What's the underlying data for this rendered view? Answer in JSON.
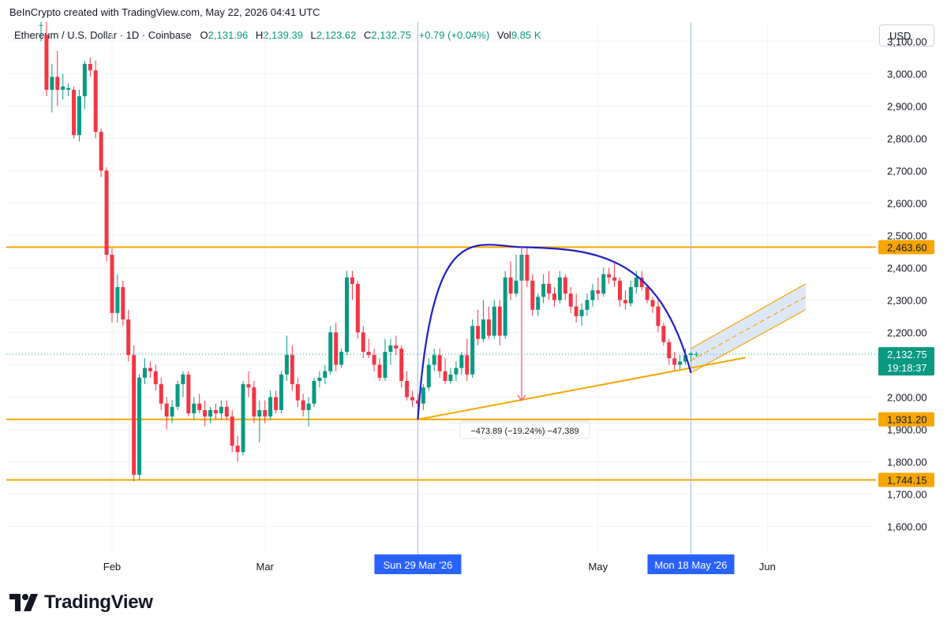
{
  "credit": "BeInCrypto created with TradingView.com, May 22, 2026 04:41 UTC",
  "legend": {
    "symbol": "Ethereum / U.S. Dollar · 1D · Coinbase",
    "o_label": "O",
    "o": "2,131.96",
    "h_label": "H",
    "h": "2,139.39",
    "l_label": "L",
    "l": "2,123.62",
    "c_label": "C",
    "c": "2,132.75",
    "change": "+0.79 (+0.04%)",
    "vol_label": "Vol",
    "vol": "9.85 K"
  },
  "currency": "USD",
  "brand": "TradingView",
  "colors": {
    "up": "#089981",
    "down": "#f23645",
    "level": "#f7a600",
    "arc": "#1e1ec8",
    "crosshair": "#2962ff"
  },
  "chart_data": {
    "type": "candlestick",
    "y_axis": {
      "range": [
        1550,
        3150
      ],
      "ticks": [
        1600,
        1700,
        1800,
        1900,
        2000,
        2100,
        2200,
        2300,
        2400,
        2500,
        2600,
        2700,
        2800,
        2900,
        3000,
        3100
      ],
      "tick_labels": [
        "1,600.00",
        "1,700.00",
        "1,800.00",
        "1,900.00",
        "2,000.00",
        "2,100.00",
        "2,200.00",
        "2,300.00",
        "2,400.00",
        "2,500.00",
        "2,600.00",
        "2,700.00",
        "2,800.00",
        "2,900.00",
        "3,000.00",
        "3,100.00"
      ]
    },
    "x_axis": {
      "range": [
        "2026-01-15",
        "2026-06-15"
      ],
      "ticks": [
        {
          "date": "2026-02-01",
          "label": "Feb"
        },
        {
          "date": "2026-03-01",
          "label": "Mar"
        },
        {
          "date": "2026-05-01",
          "label": "May"
        },
        {
          "date": "2026-06-01",
          "label": "Jun"
        }
      ]
    },
    "grid": true,
    "horizontal_levels": [
      {
        "price": 2463.6,
        "label": "2,463.60"
      },
      {
        "price": 1931.2,
        "label": "1,931.20"
      },
      {
        "price": 1744.15,
        "label": "1,744.15"
      }
    ],
    "last_price": {
      "price": 2132.75,
      "label": "2,132.75",
      "countdown": "19:18:37"
    },
    "crosshair_labels": [
      {
        "date": "2026-03-29",
        "label": "Sun 29 Mar '26"
      },
      {
        "date": "2026-05-18",
        "label": "Mon 18 May '26"
      }
    ],
    "arc": {
      "start": [
        "2026-03-29",
        1931
      ],
      "peak": [
        "2026-04-17",
        2463.6
      ],
      "end": [
        "2026-05-18",
        2075
      ]
    },
    "support_trendline": {
      "from": [
        "2026-03-29",
        1931
      ],
      "to": [
        "2026-05-28",
        2122
      ]
    },
    "measure": {
      "from": [
        "2026-04-17",
        2463.6
      ],
      "to": [
        "2026-04-17",
        1989.7
      ],
      "label": "−473.89 (−19.24%) −47,389"
    },
    "channel_forecast": {
      "upper_from": [
        "2026-05-18",
        2150
      ],
      "upper_to": [
        "2026-06-08",
        2350
      ],
      "lower_from": [
        "2026-05-18",
        2075
      ],
      "lower_to": [
        "2026-06-08",
        2270
      ]
    },
    "candles": [
      {
        "d": "2026-01-19",
        "o": 3150,
        "h": 3160,
        "l": 3100,
        "c": 3150
      },
      {
        "d": "2026-01-20",
        "o": 3120,
        "h": 3160,
        "l": 2930,
        "c": 2950
      },
      {
        "d": "2026-01-21",
        "o": 2950,
        "h": 3030,
        "l": 2880,
        "c": 2990
      },
      {
        "d": "2026-01-22",
        "o": 2990,
        "h": 3070,
        "l": 2900,
        "c": 2950
      },
      {
        "d": "2026-01-23",
        "o": 2950,
        "h": 3000,
        "l": 2920,
        "c": 2960
      },
      {
        "d": "2026-01-24",
        "o": 2950,
        "h": 2970,
        "l": 2930,
        "c": 2955
      },
      {
        "d": "2026-01-25",
        "o": 2950,
        "h": 2960,
        "l": 2800,
        "c": 2810
      },
      {
        "d": "2026-01-26",
        "o": 2810,
        "h": 2950,
        "l": 2790,
        "c": 2930
      },
      {
        "d": "2026-01-27",
        "o": 2930,
        "h": 3040,
        "l": 2890,
        "c": 3030
      },
      {
        "d": "2026-01-28",
        "o": 3030,
        "h": 3050,
        "l": 2990,
        "c": 3010
      },
      {
        "d": "2026-01-29",
        "o": 3010,
        "h": 3040,
        "l": 2800,
        "c": 2820
      },
      {
        "d": "2026-01-30",
        "o": 2820,
        "h": 2830,
        "l": 2680,
        "c": 2700
      },
      {
        "d": "2026-01-31",
        "o": 2700,
        "h": 2710,
        "l": 2420,
        "c": 2440
      },
      {
        "d": "2026-02-01",
        "o": 2440,
        "h": 2460,
        "l": 2230,
        "c": 2260
      },
      {
        "d": "2026-02-02",
        "o": 2260,
        "h": 2380,
        "l": 2230,
        "c": 2340
      },
      {
        "d": "2026-02-03",
        "o": 2340,
        "h": 2360,
        "l": 2220,
        "c": 2240
      },
      {
        "d": "2026-02-04",
        "o": 2240,
        "h": 2270,
        "l": 2110,
        "c": 2130
      },
      {
        "d": "2026-02-05",
        "o": 2130,
        "h": 2160,
        "l": 1740,
        "c": 1760
      },
      {
        "d": "2026-02-06",
        "o": 1760,
        "h": 2070,
        "l": 1744,
        "c": 2060
      },
      {
        "d": "2026-02-07",
        "o": 2060,
        "h": 2120,
        "l": 2040,
        "c": 2090
      },
      {
        "d": "2026-02-08",
        "o": 2090,
        "h": 2110,
        "l": 2060,
        "c": 2080
      },
      {
        "d": "2026-02-09",
        "o": 2080,
        "h": 2100,
        "l": 2020,
        "c": 2040
      },
      {
        "d": "2026-02-10",
        "o": 2040,
        "h": 2060,
        "l": 1960,
        "c": 1980
      },
      {
        "d": "2026-02-11",
        "o": 1980,
        "h": 2000,
        "l": 1900,
        "c": 1940
      },
      {
        "d": "2026-02-12",
        "o": 1940,
        "h": 1990,
        "l": 1920,
        "c": 1970
      },
      {
        "d": "2026-02-13",
        "o": 1970,
        "h": 2050,
        "l": 1960,
        "c": 2040
      },
      {
        "d": "2026-02-14",
        "o": 2040,
        "h": 2080,
        "l": 2000,
        "c": 2070
      },
      {
        "d": "2026-02-15",
        "o": 2070,
        "h": 2080,
        "l": 1940,
        "c": 1950
      },
      {
        "d": "2026-02-16",
        "o": 1950,
        "h": 2000,
        "l": 1930,
        "c": 1980
      },
      {
        "d": "2026-02-17",
        "o": 1980,
        "h": 2010,
        "l": 1950,
        "c": 1960
      },
      {
        "d": "2026-02-18",
        "o": 1960,
        "h": 1990,
        "l": 1910,
        "c": 1940
      },
      {
        "d": "2026-02-19",
        "o": 1940,
        "h": 1970,
        "l": 1920,
        "c": 1960
      },
      {
        "d": "2026-02-20",
        "o": 1960,
        "h": 1980,
        "l": 1930,
        "c": 1950
      },
      {
        "d": "2026-02-21",
        "o": 1950,
        "h": 1990,
        "l": 1930,
        "c": 1970
      },
      {
        "d": "2026-02-22",
        "o": 1970,
        "h": 1990,
        "l": 1930,
        "c": 1940
      },
      {
        "d": "2026-02-23",
        "o": 1940,
        "h": 1960,
        "l": 1830,
        "c": 1850
      },
      {
        "d": "2026-02-24",
        "o": 1850,
        "h": 1880,
        "l": 1800,
        "c": 1830
      },
      {
        "d": "2026-02-25",
        "o": 1830,
        "h": 2050,
        "l": 1820,
        "c": 2040
      },
      {
        "d": "2026-02-26",
        "o": 2040,
        "h": 2080,
        "l": 2000,
        "c": 2030
      },
      {
        "d": "2026-02-27",
        "o": 2030,
        "h": 2050,
        "l": 1920,
        "c": 1940
      },
      {
        "d": "2026-02-28",
        "o": 1940,
        "h": 1990,
        "l": 1860,
        "c": 1960
      },
      {
        "d": "2026-03-01",
        "o": 1960,
        "h": 1990,
        "l": 1920,
        "c": 1940
      },
      {
        "d": "2026-03-02",
        "o": 1940,
        "h": 2020,
        "l": 1930,
        "c": 2000
      },
      {
        "d": "2026-03-03",
        "o": 2000,
        "h": 2020,
        "l": 1950,
        "c": 1960
      },
      {
        "d": "2026-03-04",
        "o": 1960,
        "h": 2080,
        "l": 1950,
        "c": 2070
      },
      {
        "d": "2026-03-05",
        "o": 2070,
        "h": 2190,
        "l": 2050,
        "c": 2130
      },
      {
        "d": "2026-03-06",
        "o": 2130,
        "h": 2160,
        "l": 2020,
        "c": 2040
      },
      {
        "d": "2026-03-07",
        "o": 2040,
        "h": 2060,
        "l": 1970,
        "c": 1990
      },
      {
        "d": "2026-03-08",
        "o": 1990,
        "h": 2010,
        "l": 1940,
        "c": 1960
      },
      {
        "d": "2026-03-09",
        "o": 1960,
        "h": 2000,
        "l": 1910,
        "c": 1980
      },
      {
        "d": "2026-03-10",
        "o": 1980,
        "h": 2060,
        "l": 1970,
        "c": 2050
      },
      {
        "d": "2026-03-11",
        "o": 2050,
        "h": 2080,
        "l": 2030,
        "c": 2060
      },
      {
        "d": "2026-03-12",
        "o": 2060,
        "h": 2100,
        "l": 2040,
        "c": 2080
      },
      {
        "d": "2026-03-13",
        "o": 2080,
        "h": 2220,
        "l": 2070,
        "c": 2200
      },
      {
        "d": "2026-03-14",
        "o": 2200,
        "h": 2230,
        "l": 2080,
        "c": 2100
      },
      {
        "d": "2026-03-15",
        "o": 2100,
        "h": 2150,
        "l": 2090,
        "c": 2140
      },
      {
        "d": "2026-03-16",
        "o": 2140,
        "h": 2390,
        "l": 2130,
        "c": 2370
      },
      {
        "d": "2026-03-17",
        "o": 2370,
        "h": 2390,
        "l": 2300,
        "c": 2350
      },
      {
        "d": "2026-03-18",
        "o": 2350,
        "h": 2360,
        "l": 2180,
        "c": 2200
      },
      {
        "d": "2026-03-19",
        "o": 2200,
        "h": 2220,
        "l": 2120,
        "c": 2140
      },
      {
        "d": "2026-03-20",
        "o": 2140,
        "h": 2180,
        "l": 2120,
        "c": 2130
      },
      {
        "d": "2026-03-21",
        "o": 2130,
        "h": 2150,
        "l": 2080,
        "c": 2100
      },
      {
        "d": "2026-03-22",
        "o": 2100,
        "h": 2120,
        "l": 2050,
        "c": 2060
      },
      {
        "d": "2026-03-23",
        "o": 2060,
        "h": 2180,
        "l": 2050,
        "c": 2140
      },
      {
        "d": "2026-03-24",
        "o": 2140,
        "h": 2180,
        "l": 2100,
        "c": 2160
      },
      {
        "d": "2026-03-25",
        "o": 2160,
        "h": 2190,
        "l": 2130,
        "c": 2150
      },
      {
        "d": "2026-03-26",
        "o": 2150,
        "h": 2160,
        "l": 2030,
        "c": 2050
      },
      {
        "d": "2026-03-27",
        "o": 2050,
        "h": 2080,
        "l": 1990,
        "c": 2000
      },
      {
        "d": "2026-03-28",
        "o": 2000,
        "h": 2020,
        "l": 1970,
        "c": 1990
      },
      {
        "d": "2026-03-29",
        "o": 1990,
        "h": 2010,
        "l": 1931,
        "c": 1980
      },
      {
        "d": "2026-03-30",
        "o": 1980,
        "h": 2040,
        "l": 1960,
        "c": 2030
      },
      {
        "d": "2026-03-31",
        "o": 2030,
        "h": 2120,
        "l": 2020,
        "c": 2100
      },
      {
        "d": "2026-04-01",
        "o": 2100,
        "h": 2150,
        "l": 2080,
        "c": 2130
      },
      {
        "d": "2026-04-02",
        "o": 2130,
        "h": 2150,
        "l": 2060,
        "c": 2080
      },
      {
        "d": "2026-04-03",
        "o": 2080,
        "h": 2120,
        "l": 2040,
        "c": 2050
      },
      {
        "d": "2026-04-04",
        "o": 2050,
        "h": 2090,
        "l": 2040,
        "c": 2070
      },
      {
        "d": "2026-04-05",
        "o": 2070,
        "h": 2110,
        "l": 2050,
        "c": 2090
      },
      {
        "d": "2026-04-06",
        "o": 2090,
        "h": 2140,
        "l": 2070,
        "c": 2130
      },
      {
        "d": "2026-04-07",
        "o": 2130,
        "h": 2180,
        "l": 2050,
        "c": 2070
      },
      {
        "d": "2026-04-08",
        "o": 2070,
        "h": 2240,
        "l": 2060,
        "c": 2220
      },
      {
        "d": "2026-04-09",
        "o": 2220,
        "h": 2270,
        "l": 2160,
        "c": 2180
      },
      {
        "d": "2026-04-10",
        "o": 2180,
        "h": 2300,
        "l": 2170,
        "c": 2240
      },
      {
        "d": "2026-04-11",
        "o": 2240,
        "h": 2280,
        "l": 2180,
        "c": 2190
      },
      {
        "d": "2026-04-12",
        "o": 2190,
        "h": 2300,
        "l": 2180,
        "c": 2280
      },
      {
        "d": "2026-04-13",
        "o": 2280,
        "h": 2300,
        "l": 2160,
        "c": 2190
      },
      {
        "d": "2026-04-14",
        "o": 2190,
        "h": 2390,
        "l": 2180,
        "c": 2370
      },
      {
        "d": "2026-04-15",
        "o": 2370,
        "h": 2420,
        "l": 2300,
        "c": 2320
      },
      {
        "d": "2026-04-16",
        "o": 2320,
        "h": 2440,
        "l": 2310,
        "c": 2360
      },
      {
        "d": "2026-04-17",
        "o": 2360,
        "h": 2463,
        "l": 2330,
        "c": 2440
      },
      {
        "d": "2026-04-18",
        "o": 2440,
        "h": 2460,
        "l": 2340,
        "c": 2360
      },
      {
        "d": "2026-04-19",
        "o": 2360,
        "h": 2380,
        "l": 2250,
        "c": 2270
      },
      {
        "d": "2026-04-20",
        "o": 2270,
        "h": 2320,
        "l": 2250,
        "c": 2310
      },
      {
        "d": "2026-04-21",
        "o": 2310,
        "h": 2380,
        "l": 2290,
        "c": 2350
      },
      {
        "d": "2026-04-22",
        "o": 2350,
        "h": 2390,
        "l": 2300,
        "c": 2320
      },
      {
        "d": "2026-04-23",
        "o": 2320,
        "h": 2340,
        "l": 2280,
        "c": 2300
      },
      {
        "d": "2026-04-24",
        "o": 2300,
        "h": 2390,
        "l": 2290,
        "c": 2370
      },
      {
        "d": "2026-04-25",
        "o": 2370,
        "h": 2380,
        "l": 2300,
        "c": 2320
      },
      {
        "d": "2026-04-26",
        "o": 2320,
        "h": 2340,
        "l": 2260,
        "c": 2280
      },
      {
        "d": "2026-04-27",
        "o": 2280,
        "h": 2320,
        "l": 2230,
        "c": 2250
      },
      {
        "d": "2026-04-28",
        "o": 2250,
        "h": 2290,
        "l": 2220,
        "c": 2270
      },
      {
        "d": "2026-04-29",
        "o": 2270,
        "h": 2320,
        "l": 2250,
        "c": 2300
      },
      {
        "d": "2026-04-30",
        "o": 2300,
        "h": 2350,
        "l": 2280,
        "c": 2330
      },
      {
        "d": "2026-05-01",
        "o": 2330,
        "h": 2370,
        "l": 2300,
        "c": 2320
      },
      {
        "d": "2026-05-02",
        "o": 2320,
        "h": 2400,
        "l": 2310,
        "c": 2380
      },
      {
        "d": "2026-05-03",
        "o": 2380,
        "h": 2400,
        "l": 2350,
        "c": 2370
      },
      {
        "d": "2026-05-04",
        "o": 2370,
        "h": 2420,
        "l": 2340,
        "c": 2360
      },
      {
        "d": "2026-05-05",
        "o": 2360,
        "h": 2370,
        "l": 2280,
        "c": 2300
      },
      {
        "d": "2026-05-06",
        "o": 2300,
        "h": 2330,
        "l": 2270,
        "c": 2290
      },
      {
        "d": "2026-05-07",
        "o": 2290,
        "h": 2360,
        "l": 2280,
        "c": 2340
      },
      {
        "d": "2026-05-08",
        "o": 2340,
        "h": 2390,
        "l": 2320,
        "c": 2370
      },
      {
        "d": "2026-05-09",
        "o": 2370,
        "h": 2390,
        "l": 2330,
        "c": 2340
      },
      {
        "d": "2026-05-10",
        "o": 2340,
        "h": 2350,
        "l": 2290,
        "c": 2300
      },
      {
        "d": "2026-05-11",
        "o": 2300,
        "h": 2310,
        "l": 2260,
        "c": 2280
      },
      {
        "d": "2026-05-12",
        "o": 2280,
        "h": 2300,
        "l": 2200,
        "c": 2220
      },
      {
        "d": "2026-05-13",
        "o": 2220,
        "h": 2230,
        "l": 2160,
        "c": 2170
      },
      {
        "d": "2026-05-14",
        "o": 2170,
        "h": 2180,
        "l": 2100,
        "c": 2120
      },
      {
        "d": "2026-05-15",
        "o": 2120,
        "h": 2140,
        "l": 2080,
        "c": 2100
      },
      {
        "d": "2026-05-16",
        "o": 2100,
        "h": 2130,
        "l": 2080,
        "c": 2110
      },
      {
        "d": "2026-05-17",
        "o": 2110,
        "h": 2150,
        "l": 2100,
        "c": 2130
      },
      {
        "d": "2026-05-18",
        "o": 2130,
        "h": 2140,
        "l": 2110,
        "c": 2135
      },
      {
        "d": "2026-05-19",
        "o": 2131.96,
        "h": 2139.39,
        "l": 2123.62,
        "c": 2132.75
      }
    ]
  }
}
